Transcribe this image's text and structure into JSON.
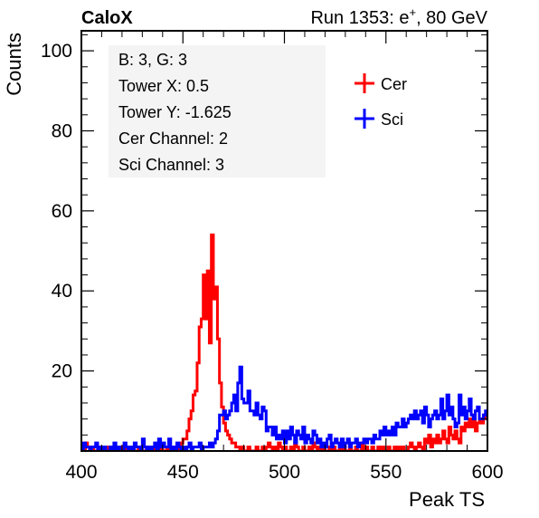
{
  "header": {
    "experiment": "CaloX",
    "run_prefix": "Run 1353: e",
    "run_sup": "+",
    "run_suffix": ", 80 GeV"
  },
  "info_box": {
    "lines": [
      "B: 3, G: 3",
      "Tower X: 0.5",
      "Tower Y: -1.625",
      "Cer Channel: 2",
      "Sci Channel: 3"
    ]
  },
  "chart_data": {
    "type": "line",
    "drawstyle": "histogram-step",
    "xlabel": "Peak TS",
    "ylabel": "Counts",
    "xlim": [
      400,
      600
    ],
    "ylim": [
      0,
      105
    ],
    "xticks": [
      400,
      450,
      500,
      550,
      600
    ],
    "yticks": [
      20,
      40,
      60,
      80,
      100
    ],
    "legend_position": "top-right",
    "bin_width": 1,
    "x_start": 400,
    "series": [
      {
        "name": "Cer",
        "color": "#ff0000",
        "values": [
          1,
          0,
          2,
          1,
          0,
          1,
          0,
          0,
          1,
          0,
          1,
          0,
          0,
          1,
          0,
          1,
          0,
          0,
          0,
          1,
          0,
          0,
          1,
          0,
          0,
          1,
          0,
          0,
          1,
          0,
          0,
          0,
          1,
          0,
          0,
          1,
          0,
          0,
          0,
          1,
          0,
          0,
          1,
          0,
          0,
          0,
          1,
          1,
          0,
          2,
          3,
          3,
          5,
          8,
          10,
          14,
          15,
          22,
          31,
          33,
          44,
          33,
          45,
          27,
          54,
          38,
          41,
          28,
          17,
          11,
          7,
          5,
          4,
          3,
          2,
          2,
          1,
          1,
          0,
          1,
          0,
          0,
          1,
          0,
          0,
          0,
          1,
          0,
          0,
          1,
          0,
          1,
          2,
          1,
          0,
          1,
          0,
          2,
          1,
          0,
          1,
          0,
          0,
          1,
          0,
          2,
          1,
          0,
          0,
          1,
          0,
          0,
          1,
          0,
          2,
          1,
          0,
          1,
          0,
          1,
          0,
          0,
          1,
          0,
          1,
          0,
          0,
          1,
          0,
          1,
          0,
          0,
          1,
          0,
          0,
          1,
          0,
          0,
          2,
          0,
          1,
          0,
          0,
          1,
          0,
          0,
          1,
          0,
          1,
          0,
          0,
          1,
          0,
          0,
          1,
          0,
          1,
          0,
          1,
          0,
          0,
          1,
          2,
          1,
          0,
          1,
          2,
          1,
          0,
          3,
          2,
          4,
          1,
          3,
          2,
          4,
          2,
          3,
          5,
          3,
          2,
          6,
          4,
          3,
          5,
          3,
          2,
          6,
          5,
          7,
          6,
          8,
          6,
          9,
          5,
          7,
          8,
          7,
          9,
          8,
          9
        ]
      },
      {
        "name": "Sci",
        "color": "#0000ff",
        "values": [
          0,
          2,
          1,
          1,
          0,
          1,
          1,
          2,
          0,
          1,
          0,
          1,
          0,
          0,
          1,
          0,
          2,
          0,
          1,
          0,
          0,
          2,
          1,
          0,
          1,
          0,
          2,
          1,
          1,
          0,
          3,
          1,
          0,
          1,
          0,
          1,
          2,
          0,
          3,
          1,
          2,
          1,
          1,
          3,
          0,
          1,
          0,
          2,
          1,
          0,
          1,
          0,
          1,
          2,
          0,
          1,
          1,
          1,
          2,
          0,
          1,
          1,
          1,
          2,
          1,
          2,
          3,
          5,
          9,
          9,
          10,
          8,
          9,
          10,
          12,
          14,
          10,
          17,
          21,
          13,
          12,
          12,
          15,
          10,
          10,
          9,
          12,
          9,
          8,
          11,
          10,
          5,
          6,
          6,
          4,
          6,
          3,
          4,
          3,
          5,
          2,
          5,
          3,
          6,
          4,
          2,
          5,
          4,
          3,
          6,
          2,
          4,
          3,
          2,
          5,
          4,
          2,
          3,
          1,
          2,
          1,
          3,
          4,
          1,
          2,
          3,
          2,
          1,
          3,
          1,
          2,
          3,
          1,
          2,
          2,
          3,
          1,
          2,
          2,
          3,
          2,
          3,
          3,
          2,
          4,
          3,
          3,
          5,
          4,
          6,
          4,
          5,
          4,
          6,
          4,
          7,
          6,
          6,
          8,
          6,
          7,
          8,
          9,
          8,
          10,
          8,
          9,
          10,
          7,
          11,
          9,
          6,
          8,
          9,
          10,
          8,
          9,
          13,
          8,
          10,
          14,
          9,
          11,
          8,
          6,
          7,
          14,
          9,
          11,
          8,
          10,
          13,
          9,
          8,
          10,
          11,
          8,
          8,
          9,
          10,
          8
        ]
      }
    ]
  }
}
